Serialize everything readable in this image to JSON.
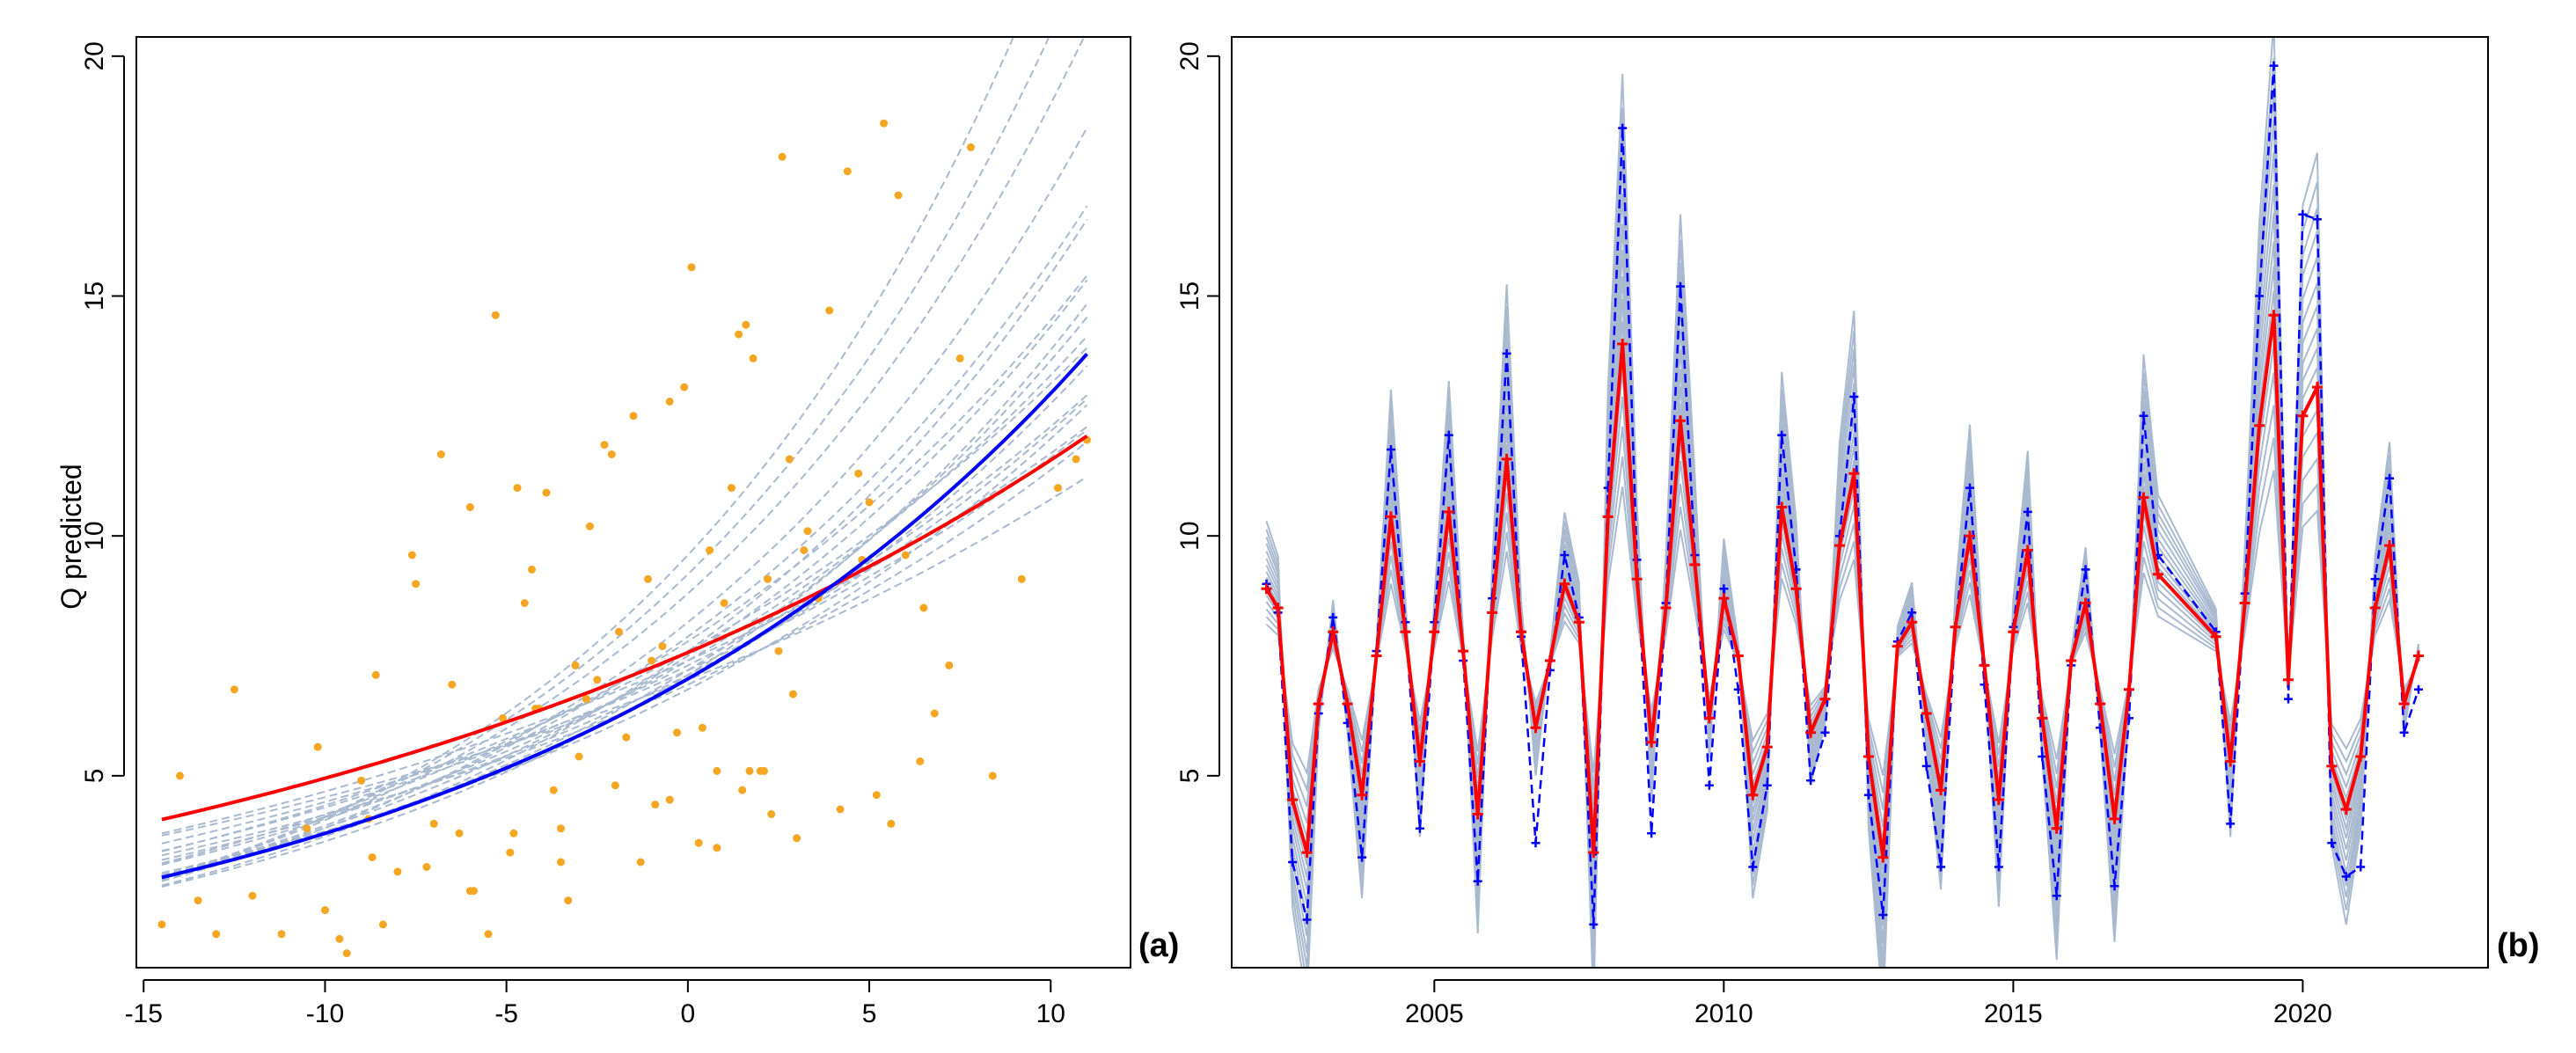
{
  "chart_data": [
    {
      "id": "a",
      "type": "scatter",
      "panel_label": "(a)",
      "ylabel": "Q predicted",
      "xlabel": "",
      "xlim": [
        -15.2,
        12.2
      ],
      "ylim": [
        1.0,
        20.4
      ],
      "xticks": [
        -15,
        -10,
        -5,
        0,
        5,
        10
      ],
      "xtick_labels": [
        "-15",
        "-10",
        "-5",
        "0",
        "5",
        "10"
      ],
      "yticks": [
        5,
        10,
        15,
        20
      ],
      "ytick_labels": [
        "5",
        "10",
        "15",
        "20"
      ],
      "grid": false,
      "colors": {
        "points": "#f5a623",
        "ensemble": "#a9b9d0",
        "red": "#ff0000",
        "blue": "#0000ff"
      },
      "points": [
        [
          -14.5,
          1.9
        ],
        [
          -14.0,
          5.0
        ],
        [
          -13.5,
          2.4
        ],
        [
          -13.0,
          1.7
        ],
        [
          -12.5,
          6.8
        ],
        [
          -11.2,
          1.7
        ],
        [
          -10.5,
          3.9
        ],
        [
          -10.2,
          5.6
        ],
        [
          -10.0,
          2.2
        ],
        [
          -9.6,
          1.6
        ],
        [
          -9.4,
          1.3
        ],
        [
          -9.0,
          4.9
        ],
        [
          -8.7,
          3.3
        ],
        [
          -8.6,
          7.1
        ],
        [
          -8.4,
          1.9
        ],
        [
          -8.0,
          3.0
        ],
        [
          -7.6,
          9.6
        ],
        [
          -7.5,
          9.0
        ],
        [
          -7.0,
          4.0
        ],
        [
          -6.8,
          11.7
        ],
        [
          -6.5,
          6.9
        ],
        [
          -6.3,
          3.8
        ],
        [
          -6.0,
          10.6
        ],
        [
          -5.9,
          2.6
        ],
        [
          -5.5,
          1.7
        ],
        [
          -5.3,
          14.6
        ],
        [
          -5.1,
          6.2
        ],
        [
          -4.9,
          3.4
        ],
        [
          -4.7,
          11.0
        ],
        [
          -4.5,
          8.6
        ],
        [
          -4.3,
          9.3
        ],
        [
          -4.1,
          6.4
        ],
        [
          -3.9,
          10.9
        ],
        [
          -3.7,
          4.7
        ],
        [
          -3.5,
          3.2
        ],
        [
          -3.3,
          2.4
        ],
        [
          -3.1,
          7.3
        ],
        [
          -3.0,
          5.4
        ],
        [
          -2.7,
          10.2
        ],
        [
          -2.5,
          7.0
        ],
        [
          -2.3,
          11.9
        ],
        [
          -2.1,
          11.7
        ],
        [
          -1.9,
          8.0
        ],
        [
          -1.7,
          5.8
        ],
        [
          -1.5,
          12.5
        ],
        [
          -1.3,
          3.2
        ],
        [
          -1.1,
          9.1
        ],
        [
          -0.9,
          4.4
        ],
        [
          -0.7,
          7.7
        ],
        [
          -0.5,
          12.8
        ],
        [
          -0.3,
          5.9
        ],
        [
          -0.1,
          13.1
        ],
        [
          0.1,
          15.6
        ],
        [
          0.3,
          3.6
        ],
        [
          0.4,
          6.0
        ],
        [
          0.6,
          9.7
        ],
        [
          0.8,
          3.5
        ],
        [
          1.0,
          8.6
        ],
        [
          1.2,
          11.0
        ],
        [
          1.4,
          14.2
        ],
        [
          1.5,
          4.7
        ],
        [
          1.6,
          14.4
        ],
        [
          1.8,
          13.7
        ],
        [
          2.0,
          5.1
        ],
        [
          2.2,
          9.1
        ],
        [
          2.3,
          4.2
        ],
        [
          2.5,
          7.6
        ],
        [
          2.6,
          17.9
        ],
        [
          2.8,
          11.6
        ],
        [
          3.0,
          3.7
        ],
        [
          3.3,
          10.1
        ],
        [
          3.6,
          8.7
        ],
        [
          3.9,
          14.7
        ],
        [
          4.2,
          4.3
        ],
        [
          4.4,
          17.6
        ],
        [
          4.7,
          11.3
        ],
        [
          5.0,
          10.7
        ],
        [
          5.2,
          4.6
        ],
        [
          5.4,
          18.6
        ],
        [
          5.6,
          4.0
        ],
        [
          5.8,
          17.1
        ],
        [
          6.0,
          9.6
        ],
        [
          6.4,
          5.3
        ],
        [
          6.8,
          6.3
        ],
        [
          7.2,
          7.3
        ],
        [
          7.5,
          13.7
        ],
        [
          7.8,
          18.1
        ],
        [
          8.4,
          5.0
        ],
        [
          9.2,
          9.1
        ],
        [
          10.2,
          11.0
        ],
        [
          10.7,
          11.6
        ],
        [
          11.0,
          12.0
        ],
        [
          -2.0,
          4.8
        ],
        [
          -0.5,
          4.5
        ],
        [
          0.8,
          5.1
        ],
        [
          1.7,
          5.1
        ],
        [
          2.1,
          5.1
        ],
        [
          -4.8,
          3.8
        ],
        [
          -6.0,
          2.6
        ],
        [
          -3.5,
          3.9
        ],
        [
          -8.8,
          4.1
        ],
        [
          -7.2,
          3.1
        ],
        [
          -2.8,
          6.6
        ],
        [
          -1.0,
          7.4
        ],
        [
          3.2,
          9.7
        ],
        [
          4.8,
          9.5
        ],
        [
          -12.0,
          2.5
        ],
        [
          -4.2,
          6.4
        ],
        [
          2.9,
          6.7
        ],
        [
          6.5,
          8.5
        ]
      ],
      "series": [
        {
          "name": "red fit",
          "coef_a": 7.57,
          "coef_b": 0.0425,
          "x_from": -14.5,
          "x_to": 11.0
        },
        {
          "name": "blue fit",
          "coef_a": 7.02,
          "coef_b": 0.0614,
          "x_from": -14.5,
          "x_to": 11.0
        }
      ],
      "ensemble_b": [
        0.043,
        0.046,
        0.048,
        0.05,
        0.052,
        0.054,
        0.055,
        0.057,
        0.059,
        0.06,
        0.062,
        0.064,
        0.065,
        0.067,
        0.069,
        0.071,
        0.074,
        0.077,
        0.08,
        0.084
      ],
      "ensemble_a": [
        7.0,
        7.4,
        7.2,
        6.9,
        7.3,
        7.1,
        7.6,
        6.8,
        7.4,
        7.0,
        7.8,
        7.2,
        7.5,
        7.1,
        7.9,
        7.6,
        8.2,
        8.8,
        9.2,
        9.6
      ]
    },
    {
      "id": "b",
      "type": "line",
      "panel_label": "(b)",
      "xlabel": "",
      "ylabel": "",
      "xlim": [
        2001.5,
        2023.2
      ],
      "ylim": [
        1.0,
        20.4
      ],
      "xticks": [
        2005,
        2010,
        2015,
        2020
      ],
      "xtick_labels": [
        "2005",
        "2010",
        "2015",
        "2020"
      ],
      "yticks": [
        5,
        10,
        15,
        20
      ],
      "ytick_labels": [
        "5",
        "10",
        "15",
        "20"
      ],
      "grid": false,
      "colors": {
        "red": "#ff0000",
        "blue": "#0000ff",
        "ensemble": "#a9b9d0"
      },
      "series": [
        {
          "name": "red",
          "x": [
            2002.1,
            2002.3,
            2002.55,
            2002.8,
            2003.0,
            2003.25,
            2003.5,
            2003.75,
            2004.0,
            2004.25,
            2004.5,
            2004.75,
            2005.0,
            2005.25,
            2005.5,
            2005.75,
            2006.0,
            2006.25,
            2006.5,
            2006.75,
            2007.0,
            2007.25,
            2007.5,
            2007.75,
            2008.0,
            2008.25,
            2008.5,
            2008.75,
            2009.0,
            2009.25,
            2009.5,
            2009.75,
            2010.0,
            2010.25,
            2010.5,
            2010.75,
            2011.0,
            2011.25,
            2011.5,
            2011.75,
            2012.0,
            2012.25,
            2012.5,
            2012.75,
            2013.0,
            2013.25,
            2013.5,
            2013.75,
            2014.0,
            2014.25,
            2014.5,
            2014.75,
            2015.0,
            2015.25,
            2015.5,
            2015.75,
            2016.0,
            2016.25,
            2016.5,
            2016.75,
            2017.0,
            2017.25,
            2017.5,
            2018.5,
            2018.75,
            2019.0,
            2019.25,
            2019.5,
            2019.75,
            2020.0,
            2020.25,
            2020.5,
            2020.75,
            2021.0,
            2021.25,
            2021.5,
            2021.75,
            2022.0
          ],
          "y": [
            8.9,
            8.5,
            4.5,
            3.4,
            6.5,
            8.0,
            6.5,
            4.6,
            7.5,
            10.4,
            8.0,
            5.3,
            8.0,
            10.5,
            7.6,
            4.2,
            8.4,
            11.6,
            8.0,
            6.0,
            7.4,
            9.0,
            8.2,
            3.4,
            10.4,
            14.0,
            9.1,
            5.7,
            8.5,
            12.4,
            9.4,
            6.2,
            8.7,
            7.5,
            4.6,
            5.6,
            10.6,
            8.9,
            5.9,
            6.6,
            9.8,
            11.3,
            5.4,
            3.3,
            7.7,
            8.2,
            6.3,
            4.7,
            8.1,
            10.0,
            7.3,
            4.5,
            8.0,
            9.7,
            6.2,
            3.9,
            7.4,
            8.6,
            6.5,
            4.1,
            6.8,
            10.8,
            9.2,
            7.9,
            5.3,
            8.6,
            12.3,
            14.6,
            7.0,
            12.5,
            13.1,
            5.2,
            4.3,
            5.4,
            8.5,
            9.8,
            6.5,
            7.5
          ]
        },
        {
          "name": "blue",
          "x": [
            2002.1,
            2002.3,
            2002.55,
            2002.8,
            2003.0,
            2003.25,
            2003.5,
            2003.75,
            2004.0,
            2004.25,
            2004.5,
            2004.75,
            2005.0,
            2005.25,
            2005.5,
            2005.75,
            2006.0,
            2006.25,
            2006.5,
            2006.75,
            2007.0,
            2007.25,
            2007.5,
            2007.75,
            2008.0,
            2008.25,
            2008.5,
            2008.75,
            2009.0,
            2009.25,
            2009.5,
            2009.75,
            2010.0,
            2010.25,
            2010.5,
            2010.75,
            2011.0,
            2011.25,
            2011.5,
            2011.75,
            2012.0,
            2012.25,
            2012.5,
            2012.75,
            2013.0,
            2013.25,
            2013.5,
            2013.75,
            2014.0,
            2014.25,
            2014.5,
            2014.75,
            2015.0,
            2015.25,
            2015.5,
            2015.75,
            2016.0,
            2016.25,
            2016.5,
            2016.75,
            2017.0,
            2017.25,
            2017.5,
            2018.5,
            2018.75,
            2019.0,
            2019.25,
            2019.5,
            2019.75,
            2020.0,
            2020.25,
            2020.5,
            2020.75,
            2021.0,
            2021.25,
            2021.5,
            2021.75,
            2022.0
          ],
          "y": [
            9.0,
            8.4,
            3.2,
            2.0,
            6.3,
            8.3,
            6.1,
            3.3,
            7.6,
            11.8,
            8.2,
            3.9,
            8.2,
            12.1,
            7.4,
            2.8,
            8.7,
            13.8,
            7.9,
            3.6,
            7.2,
            9.6,
            8.3,
            1.9,
            11.0,
            18.5,
            9.5,
            3.8,
            8.6,
            15.2,
            9.6,
            4.8,
            8.9,
            6.8,
            3.1,
            4.8,
            12.1,
            9.3,
            4.9,
            5.9,
            10.0,
            12.9,
            4.6,
            2.1,
            7.8,
            8.4,
            5.2,
            3.1,
            8.1,
            11.0,
            6.9,
            3.1,
            8.1,
            10.5,
            5.4,
            2.5,
            7.3,
            9.3,
            6.0,
            2.7,
            6.2,
            12.5,
            9.6,
            8.0,
            4.0,
            8.8,
            15.0,
            19.8,
            6.6,
            16.7,
            16.6,
            3.6,
            2.9,
            3.1,
            9.1,
            11.2,
            5.9,
            6.8
          ]
        }
      ],
      "ensemble_scales": [
        0.62,
        0.7,
        0.78,
        0.86,
        0.93,
        1.0,
        1.06,
        1.12,
        1.18,
        1.25,
        1.32,
        1.4,
        1.48,
        1.55,
        1.63,
        1.72
      ]
    }
  ]
}
